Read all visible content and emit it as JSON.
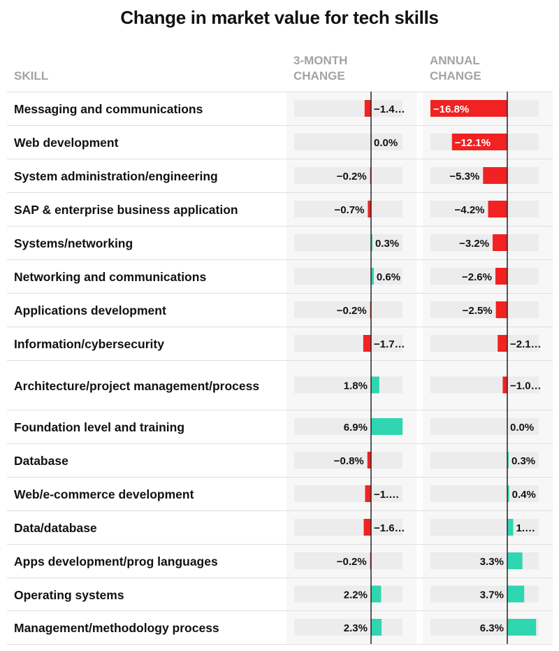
{
  "chart_data": {
    "type": "bar",
    "title": "Change in market value for tech skills",
    "columns": {
      "skill": "SKILL",
      "three_month": "3-MONTH CHANGE",
      "annual": "ANNUAL CHANGE"
    },
    "categories": [
      "Messaging and communications",
      "Web development",
      "System administration/engineering",
      "SAP & enterprise business application",
      "Systems/networking",
      "Networking and communications",
      "Applications development",
      "Information/cybersecurity",
      "Architecture/project management/process",
      "Foundation level and training",
      "Database",
      "Web/e-commerce development",
      "Data/database",
      "Apps development/prog languages",
      "Operating systems",
      "Management/methodology process"
    ],
    "series": [
      {
        "name": "3-MONTH CHANGE",
        "values": [
          -1.4,
          0.0,
          -0.2,
          -0.7,
          0.3,
          0.6,
          -0.2,
          -1.7,
          1.8,
          6.9,
          -0.8,
          -1.3,
          -1.6,
          -0.2,
          2.2,
          2.3
        ],
        "labels": [
          "−1.4…",
          "0.0%",
          "−0.2%",
          "−0.7%",
          "0.3%",
          "0.6%",
          "−0.2%",
          "−1.7…",
          "1.8%",
          "6.9%",
          "−0.8%",
          "−1.…",
          "−1.6…",
          "−0.2%",
          "2.2%",
          "2.3%"
        ],
        "domain": [
          -16.8,
          6.9
        ]
      },
      {
        "name": "ANNUAL CHANGE",
        "values": [
          -16.8,
          -12.1,
          -5.3,
          -4.2,
          -3.2,
          -2.6,
          -2.5,
          -2.1,
          -1.0,
          0.0,
          0.3,
          0.4,
          1.3,
          3.3,
          3.7,
          6.3
        ],
        "labels": [
          "−16.8%",
          "−12.1%",
          "−5.3%",
          "−4.2%",
          "−3.2%",
          "−2.6%",
          "−2.5%",
          "−2.1…",
          "−1.0…",
          "0.0%",
          "0.3%",
          "0.4%",
          "1.…",
          "3.3%",
          "3.7%",
          "6.3%"
        ],
        "domain": [
          -16.8,
          6.9
        ]
      }
    ],
    "colors": {
      "negative": "#f02222",
      "positive": "#2fd6b0",
      "axis": "#222222",
      "track": "#ececec"
    }
  }
}
